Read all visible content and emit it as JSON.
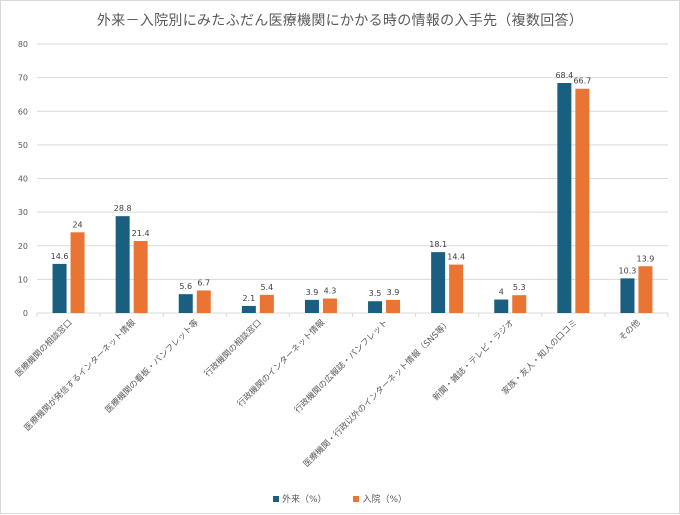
{
  "chart_data": {
    "type": "bar",
    "title": "外来－入院別にみたふだん医療機関にかかる時の情報の入手先（複数回答）",
    "xlabel": "",
    "ylabel": "",
    "ylim": [
      0,
      80
    ],
    "yticks": [
      0,
      10,
      20,
      30,
      40,
      50,
      60,
      70,
      80
    ],
    "grid": true,
    "legend_position": "bottom",
    "categories": [
      "医療機関の相談窓口",
      "医療機関が発信するインターネット情報",
      "医療機関の看板・パンフレット等",
      "行政機関の相談窓口",
      "行政機関のインターネット情報",
      "行政機関の広報誌・パンフレット",
      "医療機関・行政以外のインターネット情報（SNS等）",
      "新聞・雑誌・テレビ・ラジオ",
      "家族・友人・知人の口コミ",
      "その他"
    ],
    "series": [
      {
        "name": "外来（%）",
        "color": "#1a5e80",
        "values": [
          14.6,
          28.8,
          5.6,
          2.1,
          3.9,
          3.5,
          18.1,
          4,
          68.4,
          10.3
        ]
      },
      {
        "name": "入院（%）",
        "color": "#ea7434",
        "values": [
          24,
          21.4,
          6.7,
          5.4,
          4.3,
          3.9,
          14.4,
          5.3,
          66.7,
          13.9
        ]
      }
    ]
  },
  "legend": {
    "items": [
      {
        "label": "外来（%）",
        "color": "#1a5e80"
      },
      {
        "label": "入院（%）",
        "color": "#ea7434"
      }
    ]
  }
}
